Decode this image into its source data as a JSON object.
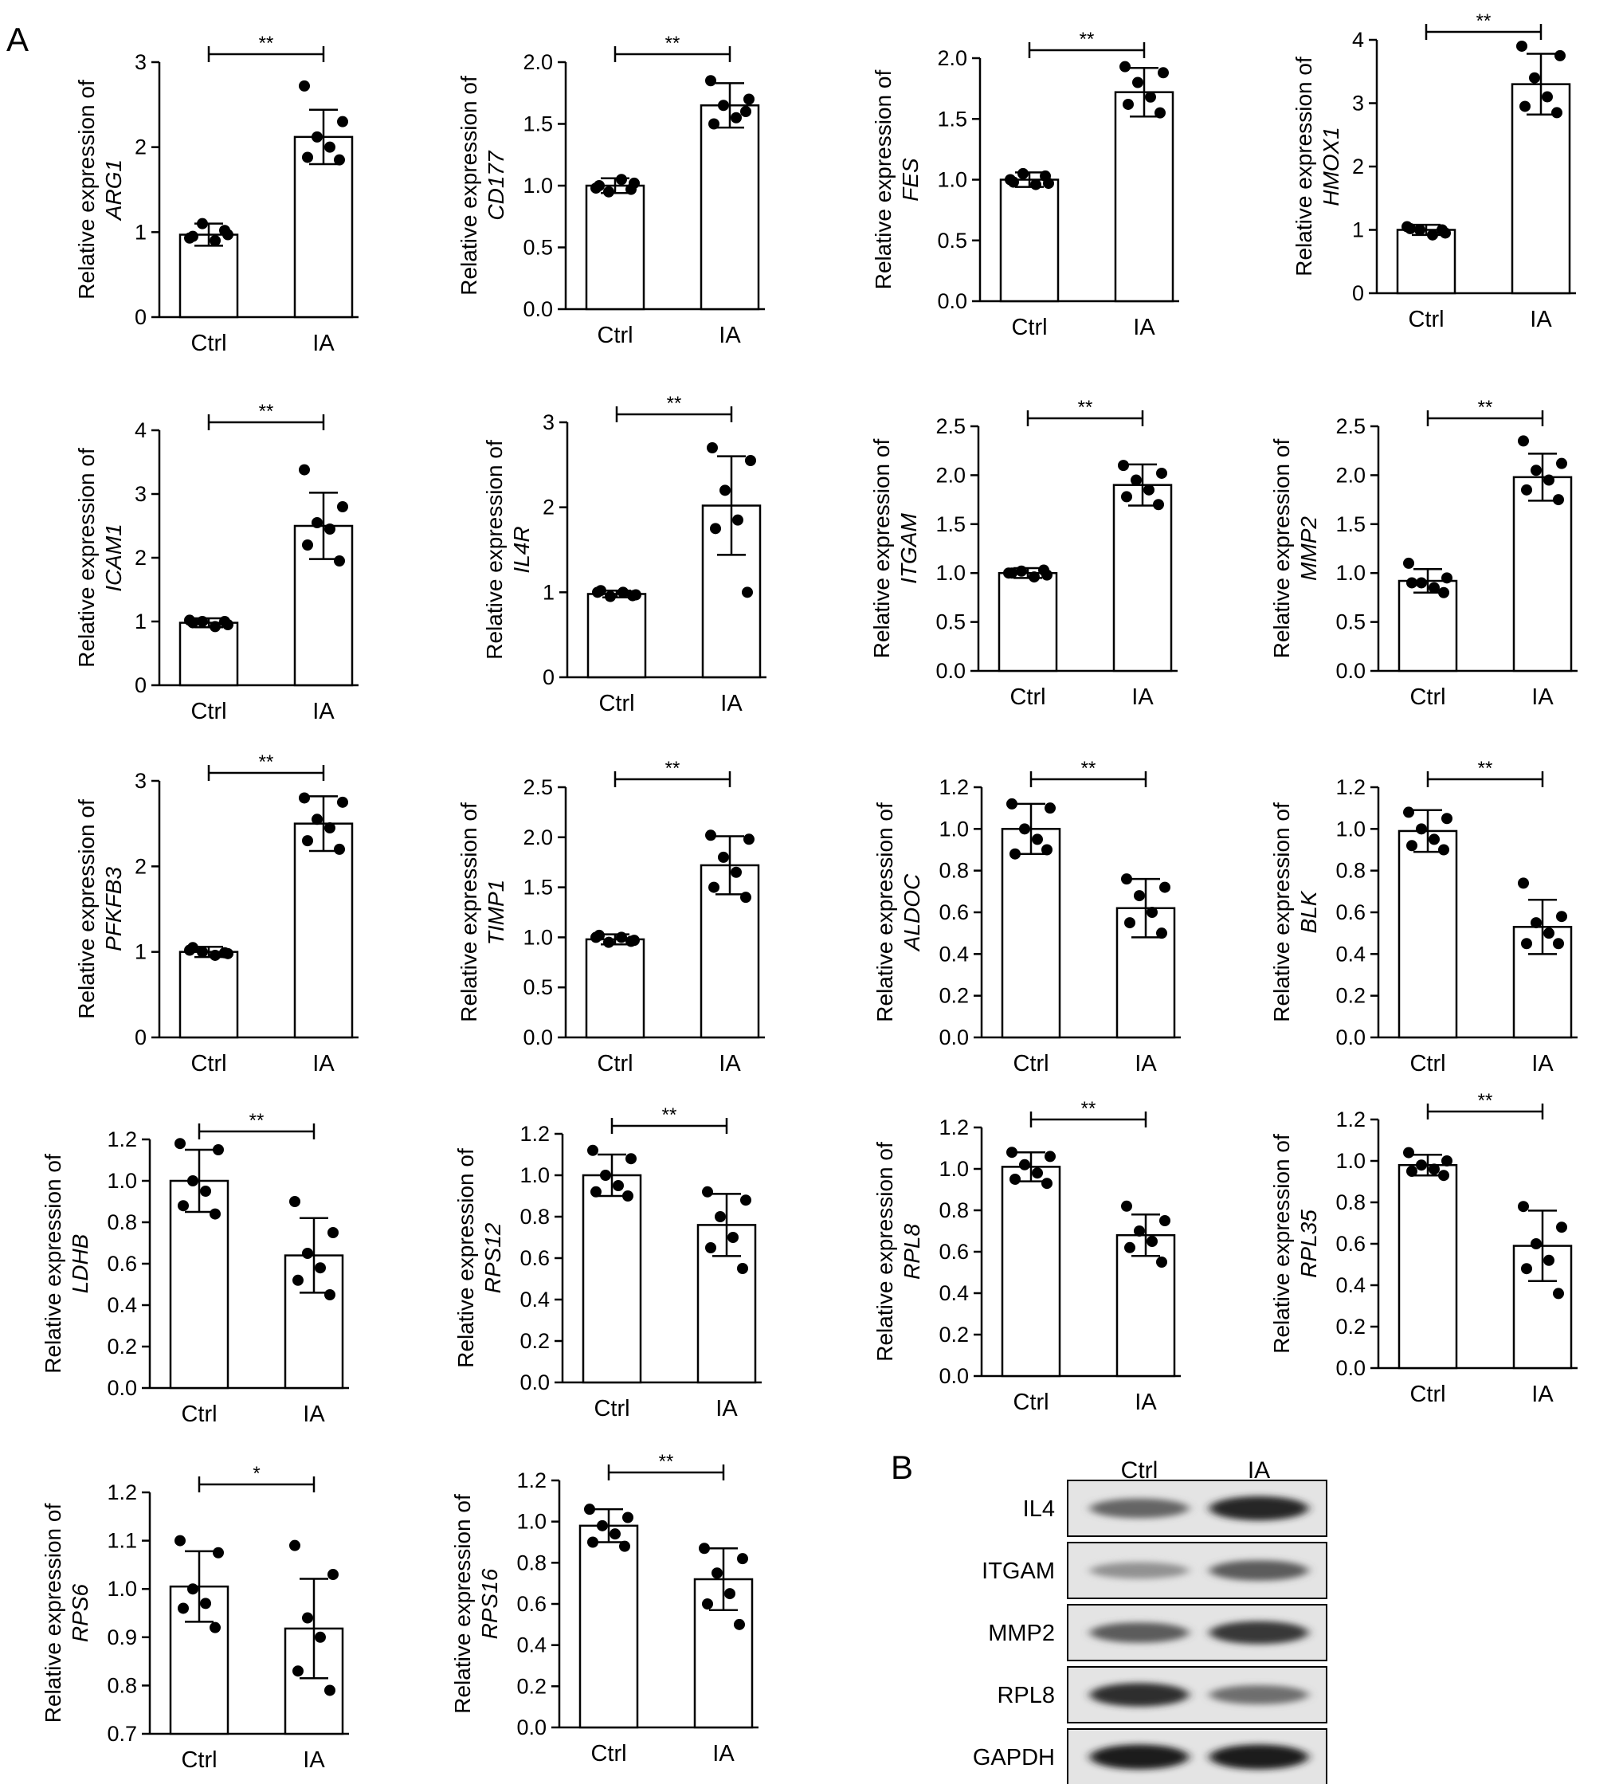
{
  "figure": {
    "panel_a_label": "A",
    "panel_b_label": "B",
    "ylabel_prefix": "Relative expression of"
  },
  "chart_data": [
    {
      "type": "bar",
      "gene": "ARG1",
      "categories": [
        "Ctrl",
        "IA"
      ],
      "values": [
        0.97,
        2.12
      ],
      "sd": [
        0.13,
        0.32
      ],
      "points": [
        [
          0.93,
          0.97,
          1.1,
          0.9,
          0.95,
          1.02
        ],
        [
          2.72,
          2.3,
          2.12,
          2.0,
          1.88,
          1.85
        ]
      ],
      "ylim": [
        0,
        3
      ],
      "yticks": [
        0,
        1,
        2,
        3
      ],
      "sig": "**"
    },
    {
      "type": "bar",
      "gene": "CD177",
      "categories": [
        "Ctrl",
        "IA"
      ],
      "values": [
        1.0,
        1.65
      ],
      "sd": [
        0.06,
        0.18
      ],
      "points": [
        [
          0.98,
          1.02,
          0.95,
          1.05,
          1.0,
          0.97
        ],
        [
          1.85,
          1.7,
          1.65,
          1.55,
          1.5,
          1.6
        ]
      ],
      "ylim": [
        0,
        2.0
      ],
      "yticks": [
        0.0,
        0.5,
        1.0,
        1.5,
        2.0
      ],
      "sig": "**"
    },
    {
      "type": "bar",
      "gene": "FES",
      "categories": [
        "Ctrl",
        "IA"
      ],
      "values": [
        1.0,
        1.72
      ],
      "sd": [
        0.06,
        0.2
      ],
      "points": [
        [
          1.0,
          0.97,
          1.05,
          0.96,
          0.98,
          1.03
        ],
        [
          1.93,
          1.88,
          1.8,
          1.68,
          1.62,
          1.55
        ]
      ],
      "ylim": [
        0,
        2.0
      ],
      "yticks": [
        0.0,
        0.5,
        1.0,
        1.5,
        2.0
      ],
      "sig": "**"
    },
    {
      "type": "bar",
      "gene": "HMOX1",
      "categories": [
        "Ctrl",
        "IA"
      ],
      "values": [
        1.0,
        3.3
      ],
      "sd": [
        0.08,
        0.48
      ],
      "points": [
        [
          1.05,
          0.95,
          1.0,
          0.92,
          1.02,
          1.0
        ],
        [
          3.9,
          3.75,
          3.4,
          3.1,
          2.95,
          2.85
        ]
      ],
      "ylim": [
        0,
        4
      ],
      "yticks": [
        0,
        1,
        2,
        3,
        4
      ],
      "sig": "**"
    },
    {
      "type": "bar",
      "gene": "ICAM1",
      "categories": [
        "Ctrl",
        "IA"
      ],
      "values": [
        0.98,
        2.5
      ],
      "sd": [
        0.07,
        0.52
      ],
      "points": [
        [
          1.02,
          0.95,
          1.0,
          0.92,
          0.98,
          1.0
        ],
        [
          3.38,
          2.8,
          2.55,
          2.45,
          2.2,
          1.95
        ]
      ],
      "ylim": [
        0,
        4
      ],
      "yticks": [
        0,
        1,
        2,
        3,
        4
      ],
      "sig": "**"
    },
    {
      "type": "bar",
      "gene": "IL4R",
      "categories": [
        "Ctrl",
        "IA"
      ],
      "values": [
        0.98,
        2.02
      ],
      "sd": [
        0.04,
        0.58
      ],
      "points": [
        [
          1.0,
          0.97,
          0.95,
          1.0,
          1.02,
          0.96
        ],
        [
          2.7,
          2.55,
          2.2,
          1.85,
          1.75,
          1.0
        ]
      ],
      "ylim": [
        0,
        3
      ],
      "yticks": [
        0,
        1,
        2,
        3
      ],
      "sig": "**"
    },
    {
      "type": "bar",
      "gene": "ITGAM",
      "categories": [
        "Ctrl",
        "IA"
      ],
      "values": [
        1.0,
        1.9
      ],
      "sd": [
        0.05,
        0.21
      ],
      "points": [
        [
          1.0,
          0.98,
          1.02,
          0.96,
          1.0,
          1.03
        ],
        [
          2.1,
          2.02,
          1.95,
          1.85,
          1.78,
          1.7
        ]
      ],
      "ylim": [
        0,
        2.5
      ],
      "yticks": [
        0.0,
        0.5,
        1.0,
        1.5,
        2.0,
        2.5
      ],
      "sig": "**"
    },
    {
      "type": "bar",
      "gene": "MMP2",
      "categories": [
        "Ctrl",
        "IA"
      ],
      "values": [
        0.92,
        1.98
      ],
      "sd": [
        0.12,
        0.24
      ],
      "points": [
        [
          1.1,
          0.95,
          0.9,
          0.85,
          0.9,
          0.8
        ],
        [
          2.35,
          2.12,
          2.05,
          1.95,
          1.85,
          1.75
        ]
      ],
      "ylim": [
        0,
        2.5
      ],
      "yticks": [
        0.0,
        0.5,
        1.0,
        1.5,
        2.0,
        2.5
      ],
      "sig": "**"
    },
    {
      "type": "bar",
      "gene": "PFKFB3",
      "categories": [
        "Ctrl",
        "IA"
      ],
      "values": [
        1.0,
        2.5
      ],
      "sd": [
        0.06,
        0.32
      ],
      "points": [
        [
          1.02,
          0.98,
          1.0,
          0.96,
          1.05,
          0.99
        ],
        [
          2.8,
          2.75,
          2.55,
          2.45,
          2.3,
          2.2
        ]
      ],
      "ylim": [
        0,
        3
      ],
      "yticks": [
        0,
        1,
        2,
        3
      ],
      "sig": "**"
    },
    {
      "type": "bar",
      "gene": "TIMP1",
      "categories": [
        "Ctrl",
        "IA"
      ],
      "values": [
        0.98,
        1.72
      ],
      "sd": [
        0.05,
        0.29
      ],
      "points": [
        [
          1.0,
          0.97,
          0.95,
          1.0,
          1.02,
          0.96
        ],
        [
          2.02,
          1.98,
          1.8,
          1.65,
          1.5,
          1.4
        ]
      ],
      "ylim": [
        0,
        2.5
      ],
      "yticks": [
        0.0,
        0.5,
        1.0,
        1.5,
        2.0,
        2.5
      ],
      "sig": "**"
    },
    {
      "type": "bar",
      "gene": "ALDOC",
      "categories": [
        "Ctrl",
        "IA"
      ],
      "values": [
        1.0,
        0.62
      ],
      "sd": [
        0.12,
        0.14
      ],
      "points": [
        [
          1.12,
          1.1,
          1.0,
          0.95,
          0.88,
          0.9
        ],
        [
          0.76,
          0.72,
          0.68,
          0.6,
          0.55,
          0.5
        ]
      ],
      "ylim": [
        0,
        1.2
      ],
      "yticks": [
        0.0,
        0.2,
        0.4,
        0.6,
        0.8,
        1.0,
        1.2
      ],
      "sig": "**"
    },
    {
      "type": "bar",
      "gene": "BLK",
      "categories": [
        "Ctrl",
        "IA"
      ],
      "values": [
        0.99,
        0.53
      ],
      "sd": [
        0.1,
        0.13
      ],
      "points": [
        [
          1.08,
          1.05,
          1.0,
          0.95,
          0.92,
          0.9
        ],
        [
          0.74,
          0.58,
          0.55,
          0.5,
          0.45,
          0.45
        ]
      ],
      "ylim": [
        0,
        1.2
      ],
      "yticks": [
        0.0,
        0.2,
        0.4,
        0.6,
        0.8,
        1.0,
        1.2
      ],
      "sig": "**"
    },
    {
      "type": "bar",
      "gene": "LDHB",
      "categories": [
        "Ctrl",
        "IA"
      ],
      "values": [
        1.0,
        0.64
      ],
      "sd": [
        0.15,
        0.18
      ],
      "points": [
        [
          1.18,
          1.15,
          1.0,
          0.95,
          0.88,
          0.84
        ],
        [
          0.9,
          0.75,
          0.65,
          0.58,
          0.52,
          0.45
        ]
      ],
      "ylim": [
        0,
        1.2
      ],
      "yticks": [
        0.0,
        0.2,
        0.4,
        0.6,
        0.8,
        1.0,
        1.2
      ],
      "sig": "**"
    },
    {
      "type": "bar",
      "gene": "RPS12",
      "categories": [
        "Ctrl",
        "IA"
      ],
      "values": [
        1.0,
        0.76
      ],
      "sd": [
        0.1,
        0.15
      ],
      "points": [
        [
          1.12,
          1.08,
          1.0,
          0.95,
          0.92,
          0.9
        ],
        [
          0.92,
          0.88,
          0.8,
          0.7,
          0.65,
          0.55
        ]
      ],
      "ylim": [
        0,
        1.2
      ],
      "yticks": [
        0.0,
        0.2,
        0.4,
        0.6,
        0.8,
        1.0,
        1.2
      ],
      "sig": "**"
    },
    {
      "type": "bar",
      "gene": "RPL8",
      "categories": [
        "Ctrl",
        "IA"
      ],
      "values": [
        1.01,
        0.68
      ],
      "sd": [
        0.07,
        0.1
      ],
      "points": [
        [
          1.08,
          1.06,
          1.02,
          0.98,
          0.95,
          0.93
        ],
        [
          0.82,
          0.75,
          0.7,
          0.65,
          0.62,
          0.55
        ]
      ],
      "ylim": [
        0,
        1.2
      ],
      "yticks": [
        0.0,
        0.2,
        0.4,
        0.6,
        0.8,
        1.0,
        1.2
      ],
      "sig": "**"
    },
    {
      "type": "bar",
      "gene": "RPL35",
      "categories": [
        "Ctrl",
        "IA"
      ],
      "values": [
        0.98,
        0.59
      ],
      "sd": [
        0.05,
        0.17
      ],
      "points": [
        [
          1.04,
          1.0,
          0.98,
          0.96,
          0.95,
          0.93
        ],
        [
          0.78,
          0.68,
          0.6,
          0.52,
          0.48,
          0.36
        ]
      ],
      "ylim": [
        0,
        1.2
      ],
      "yticks": [
        0.0,
        0.2,
        0.4,
        0.6,
        0.8,
        1.0,
        1.2
      ],
      "sig": "**"
    },
    {
      "type": "bar",
      "gene": "RPS6",
      "categories": [
        "Ctrl",
        "IA"
      ],
      "values": [
        1.005,
        0.918
      ],
      "sd": [
        0.073,
        0.103
      ],
      "points": [
        [
          1.1,
          1.075,
          1.0,
          0.97,
          0.96,
          0.92
        ],
        [
          1.09,
          1.03,
          0.94,
          0.9,
          0.83,
          0.79
        ]
      ],
      "ylim": [
        0.7,
        1.2
      ],
      "yticks": [
        0.7,
        0.8,
        0.9,
        1.0,
        1.1,
        1.2
      ],
      "sig": "*"
    },
    {
      "type": "bar",
      "gene": "RPS16",
      "categories": [
        "Ctrl",
        "IA"
      ],
      "values": [
        0.98,
        0.72
      ],
      "sd": [
        0.08,
        0.15
      ],
      "points": [
        [
          1.06,
          1.02,
          0.98,
          0.94,
          0.9,
          0.88
        ],
        [
          0.87,
          0.82,
          0.75,
          0.65,
          0.6,
          0.5
        ]
      ],
      "ylim": [
        0,
        1.2
      ],
      "yticks": [
        0.0,
        0.2,
        0.4,
        0.6,
        0.8,
        1.0,
        1.2
      ],
      "sig": "**"
    }
  ],
  "western_blot": {
    "columns": [
      "Ctrl",
      "IA"
    ],
    "rows": [
      {
        "label": "IL4",
        "intensity": [
          0.55,
          0.9
        ]
      },
      {
        "label": "ITGAM",
        "intensity": [
          0.3,
          0.6
        ]
      },
      {
        "label": "MMP2",
        "intensity": [
          0.6,
          0.8
        ]
      },
      {
        "label": "RPL8",
        "intensity": [
          0.85,
          0.5
        ]
      },
      {
        "label": "GAPDH",
        "intensity": [
          0.95,
          0.95
        ]
      }
    ]
  }
}
